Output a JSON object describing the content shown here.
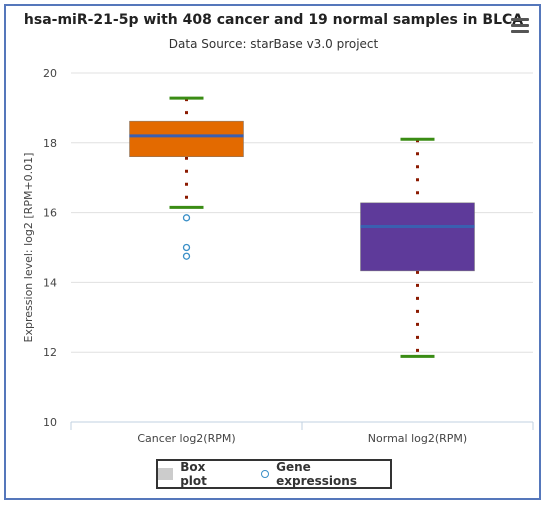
{
  "header": {
    "title": "hsa-miR-21-5p with 408 cancer and 19 normal samples in BLCA",
    "subtitle": "Data Source: starBase v3.0 project"
  },
  "legend": {
    "box_label": "Box plot",
    "points_label": "Gene expressions"
  },
  "colors": {
    "cancer_box": "#e36a00",
    "normal_box": "#5e3a9a",
    "median": "#3a5fb0",
    "whisker": "#3a8c14",
    "stem": "#8b1a00",
    "outlier": "#3a8fc7"
  },
  "chart_data": {
    "type": "box",
    "ylabel": "Expression level: log2 [RPM+0.01]",
    "ylim": [
      10,
      20
    ],
    "yticks": [
      10,
      12,
      14,
      16,
      18,
      20
    ],
    "grid": true,
    "categories": [
      "Cancer log2(RPM)",
      "Normal log2(RPM)"
    ],
    "boxes": [
      {
        "name": "Cancer log2(RPM)",
        "low": 16.15,
        "q1": 17.6,
        "median": 18.2,
        "q3": 18.62,
        "high": 19.28,
        "outliers": [
          15.85,
          15.0,
          14.75
        ]
      },
      {
        "name": "Normal log2(RPM)",
        "low": 11.88,
        "q1": 14.33,
        "median": 15.6,
        "q3": 16.28,
        "high": 18.1,
        "outliers": []
      }
    ]
  }
}
